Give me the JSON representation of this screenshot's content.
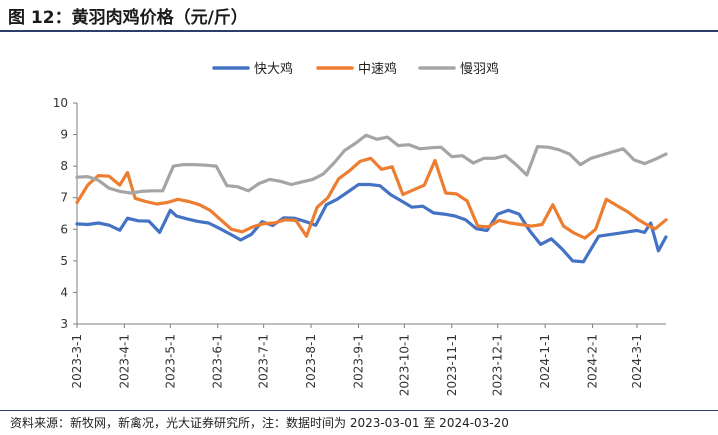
{
  "title": "图 12：黄羽肉鸡价格（元/斤）",
  "source": "资料来源：新牧网，新禽况，光大证券研究所，注：数据时间为 2023-03-01 至 2024-03-20",
  "chart_data": {
    "type": "line",
    "ylim": [
      3,
      10
    ],
    "yticks": [
      3,
      4,
      5,
      6,
      7,
      8,
      9,
      10
    ],
    "x_range": [
      "2023-03-01",
      "2024-03-20"
    ],
    "x_ticks": [
      "2023-3-1",
      "2023-4-1",
      "2023-5-1",
      "2023-6-1",
      "2023-7-1",
      "2023-8-1",
      "2023-9-1",
      "2023-10-1",
      "2023-11-1",
      "2023-12-1",
      "2024-1-1",
      "2024-2-1",
      "2024-3-1"
    ],
    "legend_position": "top",
    "grid": false,
    "series": [
      {
        "name": "快大鸡",
        "color": "#4472c4",
        "points": [
          [
            "2023-03-01",
            6.17
          ],
          [
            "2023-03-08",
            6.15
          ],
          [
            "2023-03-15",
            6.2
          ],
          [
            "2023-03-22",
            6.13
          ],
          [
            "2023-03-29",
            5.97
          ],
          [
            "2023-04-03",
            6.35
          ],
          [
            "2023-04-10",
            6.27
          ],
          [
            "2023-04-17",
            6.26
          ],
          [
            "2023-04-24",
            5.9
          ],
          [
            "2023-05-01",
            6.6
          ],
          [
            "2023-05-05",
            6.42
          ],
          [
            "2023-05-12",
            6.33
          ],
          [
            "2023-05-19",
            6.25
          ],
          [
            "2023-05-26",
            6.2
          ],
          [
            "2023-06-02",
            6.03
          ],
          [
            "2023-06-09",
            5.85
          ],
          [
            "2023-06-16",
            5.66
          ],
          [
            "2023-06-23",
            5.84
          ],
          [
            "2023-06-30",
            6.24
          ],
          [
            "2023-07-07",
            6.12
          ],
          [
            "2023-07-14",
            6.36
          ],
          [
            "2023-07-21",
            6.35
          ],
          [
            "2023-07-28",
            6.25
          ],
          [
            "2023-08-04",
            6.13
          ],
          [
            "2023-08-11",
            6.78
          ],
          [
            "2023-08-18",
            6.95
          ],
          [
            "2023-08-25",
            7.18
          ],
          [
            "2023-09-01",
            7.42
          ],
          [
            "2023-09-08",
            7.42
          ],
          [
            "2023-09-15",
            7.38
          ],
          [
            "2023-09-22",
            7.1
          ],
          [
            "2023-09-29",
            6.9
          ],
          [
            "2023-10-06",
            6.7
          ],
          [
            "2023-10-13",
            6.73
          ],
          [
            "2023-10-20",
            6.52
          ],
          [
            "2023-10-27",
            6.48
          ],
          [
            "2023-11-03",
            6.42
          ],
          [
            "2023-11-10",
            6.3
          ],
          [
            "2023-11-17",
            6.02
          ],
          [
            "2023-11-24",
            5.96
          ],
          [
            "2023-12-01",
            6.48
          ],
          [
            "2023-12-08",
            6.6
          ],
          [
            "2023-12-15",
            6.48
          ],
          [
            "2023-12-22",
            5.95
          ],
          [
            "2023-12-29",
            5.52
          ],
          [
            "2024-01-05",
            5.7
          ],
          [
            "2024-01-12",
            5.38
          ],
          [
            "2024-01-19",
            5.0
          ],
          [
            "2024-01-26",
            4.97
          ],
          [
            "2024-02-05",
            5.78
          ],
          [
            "2024-02-19",
            5.88
          ],
          [
            "2024-03-01",
            5.96
          ],
          [
            "2024-03-06",
            5.9
          ],
          [
            "2024-03-10",
            6.2
          ],
          [
            "2024-03-15",
            5.32
          ],
          [
            "2024-03-20",
            5.76
          ]
        ]
      },
      {
        "name": "中速鸡",
        "color": "#ed7d31",
        "points": [
          [
            "2023-03-01",
            6.85
          ],
          [
            "2023-03-08",
            7.4
          ],
          [
            "2023-03-15",
            7.7
          ],
          [
            "2023-03-22",
            7.68
          ],
          [
            "2023-03-29",
            7.4
          ],
          [
            "2023-04-03",
            7.8
          ],
          [
            "2023-04-08",
            6.98
          ],
          [
            "2023-04-15",
            6.88
          ],
          [
            "2023-04-22",
            6.8
          ],
          [
            "2023-04-29",
            6.85
          ],
          [
            "2023-05-06",
            6.95
          ],
          [
            "2023-05-13",
            6.88
          ],
          [
            "2023-05-20",
            6.78
          ],
          [
            "2023-05-27",
            6.6
          ],
          [
            "2023-06-03",
            6.3
          ],
          [
            "2023-06-10",
            6.0
          ],
          [
            "2023-06-17",
            5.92
          ],
          [
            "2023-06-24",
            6.08
          ],
          [
            "2023-07-01",
            6.18
          ],
          [
            "2023-07-08",
            6.2
          ],
          [
            "2023-07-15",
            6.3
          ],
          [
            "2023-07-22",
            6.28
          ],
          [
            "2023-07-29",
            5.78
          ],
          [
            "2023-08-05",
            6.7
          ],
          [
            "2023-08-12",
            7.0
          ],
          [
            "2023-08-19",
            7.6
          ],
          [
            "2023-08-26",
            7.85
          ],
          [
            "2023-09-02",
            8.15
          ],
          [
            "2023-09-09",
            8.25
          ],
          [
            "2023-09-16",
            7.9
          ],
          [
            "2023-09-23",
            7.98
          ],
          [
            "2023-09-30",
            7.1
          ],
          [
            "2023-10-07",
            7.25
          ],
          [
            "2023-10-14",
            7.4
          ],
          [
            "2023-10-21",
            8.18
          ],
          [
            "2023-10-28",
            7.15
          ],
          [
            "2023-11-04",
            7.12
          ],
          [
            "2023-11-11",
            6.9
          ],
          [
            "2023-11-18",
            6.1
          ],
          [
            "2023-11-25",
            6.08
          ],
          [
            "2023-12-02",
            6.28
          ],
          [
            "2023-12-09",
            6.2
          ],
          [
            "2023-12-16",
            6.15
          ],
          [
            "2023-12-23",
            6.1
          ],
          [
            "2023-12-30",
            6.15
          ],
          [
            "2024-01-06",
            6.78
          ],
          [
            "2024-01-13",
            6.1
          ],
          [
            "2024-01-20",
            5.88
          ],
          [
            "2024-01-27",
            5.72
          ],
          [
            "2024-02-03",
            6.0
          ],
          [
            "2024-02-10",
            6.95
          ],
          [
            "2024-02-17",
            6.75
          ],
          [
            "2024-02-24",
            6.55
          ],
          [
            "2024-03-02",
            6.3
          ],
          [
            "2024-03-09",
            6.1
          ],
          [
            "2024-03-13",
            6.02
          ],
          [
            "2024-03-20",
            6.3
          ]
        ]
      },
      {
        "name": "慢羽鸡",
        "color": "#a5a5a5",
        "points": [
          [
            "2023-03-01",
            7.65
          ],
          [
            "2023-03-08",
            7.67
          ],
          [
            "2023-03-15",
            7.55
          ],
          [
            "2023-03-22",
            7.3
          ],
          [
            "2023-03-29",
            7.2
          ],
          [
            "2023-04-05",
            7.15
          ],
          [
            "2023-04-12",
            7.2
          ],
          [
            "2023-04-19",
            7.22
          ],
          [
            "2023-04-26",
            7.22
          ],
          [
            "2023-05-03",
            8.0
          ],
          [
            "2023-05-10",
            8.05
          ],
          [
            "2023-05-17",
            8.05
          ],
          [
            "2023-05-24",
            8.03
          ],
          [
            "2023-05-31",
            8.0
          ],
          [
            "2023-06-07",
            7.38
          ],
          [
            "2023-06-14",
            7.35
          ],
          [
            "2023-06-21",
            7.22
          ],
          [
            "2023-06-28",
            7.45
          ],
          [
            "2023-07-05",
            7.58
          ],
          [
            "2023-07-12",
            7.52
          ],
          [
            "2023-07-19",
            7.42
          ],
          [
            "2023-07-26",
            7.5
          ],
          [
            "2023-08-02",
            7.58
          ],
          [
            "2023-08-09",
            7.75
          ],
          [
            "2023-08-16",
            8.1
          ],
          [
            "2023-08-23",
            8.5
          ],
          [
            "2023-08-30",
            8.72
          ],
          [
            "2023-09-06",
            8.98
          ],
          [
            "2023-09-13",
            8.85
          ],
          [
            "2023-09-20",
            8.92
          ],
          [
            "2023-09-27",
            8.65
          ],
          [
            "2023-10-04",
            8.68
          ],
          [
            "2023-10-11",
            8.55
          ],
          [
            "2023-10-18",
            8.58
          ],
          [
            "2023-10-25",
            8.6
          ],
          [
            "2023-11-01",
            8.3
          ],
          [
            "2023-11-08",
            8.33
          ],
          [
            "2023-11-15",
            8.1
          ],
          [
            "2023-11-22",
            8.25
          ],
          [
            "2023-11-29",
            8.25
          ],
          [
            "2023-12-06",
            8.33
          ],
          [
            "2023-12-13",
            8.05
          ],
          [
            "2023-12-20",
            7.72
          ],
          [
            "2023-12-27",
            8.62
          ],
          [
            "2024-01-03",
            8.6
          ],
          [
            "2024-01-10",
            8.52
          ],
          [
            "2024-01-17",
            8.38
          ],
          [
            "2024-01-24",
            8.05
          ],
          [
            "2024-01-31",
            8.25
          ],
          [
            "2024-02-07",
            8.35
          ],
          [
            "2024-02-14",
            8.45
          ],
          [
            "2024-02-21",
            8.55
          ],
          [
            "2024-02-28",
            8.2
          ],
          [
            "2024-03-06",
            8.08
          ],
          [
            "2024-03-13",
            8.22
          ],
          [
            "2024-03-20",
            8.38
          ]
        ]
      }
    ]
  }
}
